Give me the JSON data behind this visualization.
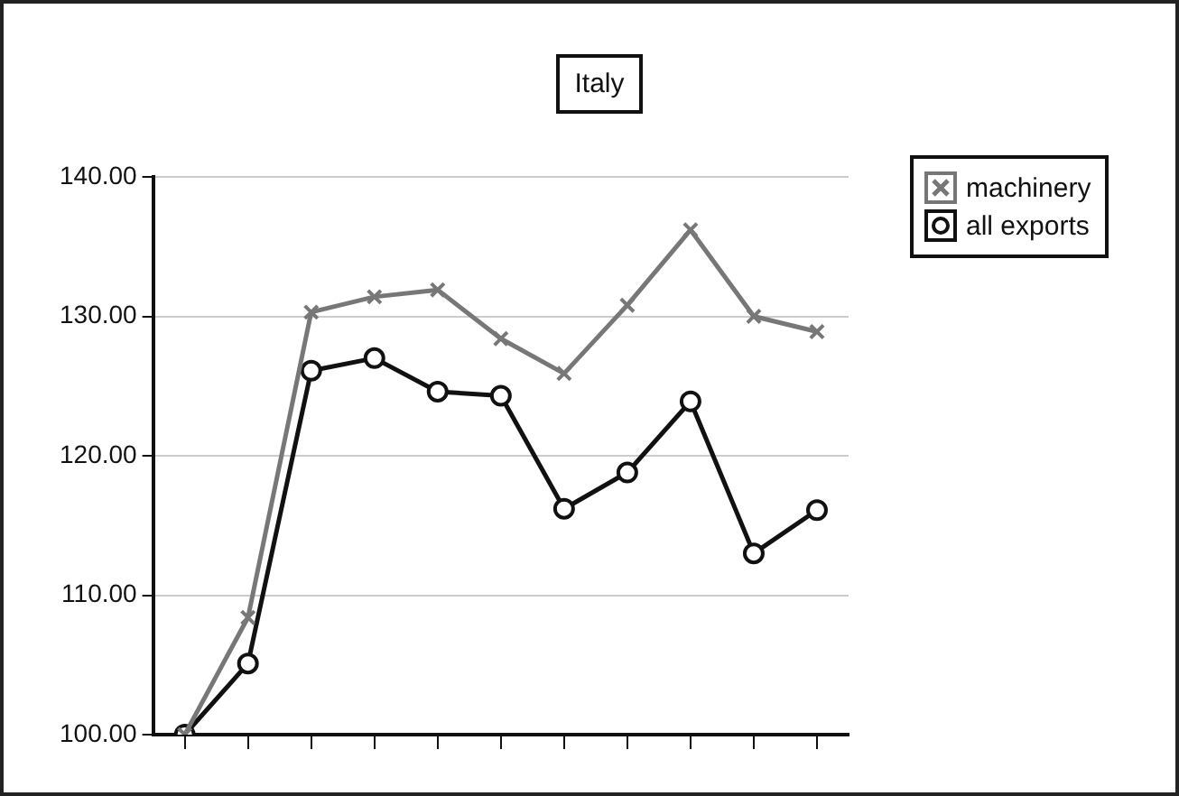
{
  "chart_data": {
    "type": "line",
    "title": "Italy",
    "categories": [
      null,
      null,
      null,
      null,
      null,
      null,
      null,
      null,
      null,
      null,
      null
    ],
    "series": [
      {
        "name": "machinery",
        "color": "#777777",
        "marker": "cross",
        "values": [
          100,
          108.4,
          130.3,
          131.4,
          131.9,
          128.4,
          125.9,
          130.8,
          136.2,
          130.0,
          128.9
        ]
      },
      {
        "name": "all exports",
        "color": "#111111",
        "marker": "circle",
        "values": [
          100,
          105.1,
          126.1,
          127.0,
          124.6,
          124.3,
          116.2,
          118.8,
          123.9,
          113.0,
          116.1
        ]
      }
    ],
    "ylim": [
      100,
      140
    ],
    "yticks": [
      {
        "value": 100,
        "label": "100.00"
      },
      {
        "value": 110,
        "label": "110.00"
      },
      {
        "value": 120,
        "label": "120.00"
      },
      {
        "value": 130,
        "label": "130.00"
      },
      {
        "value": 140,
        "label": "140.00"
      }
    ],
    "grid": "y",
    "legend": "right",
    "tick_labels": "y",
    "line_style": "solid"
  }
}
